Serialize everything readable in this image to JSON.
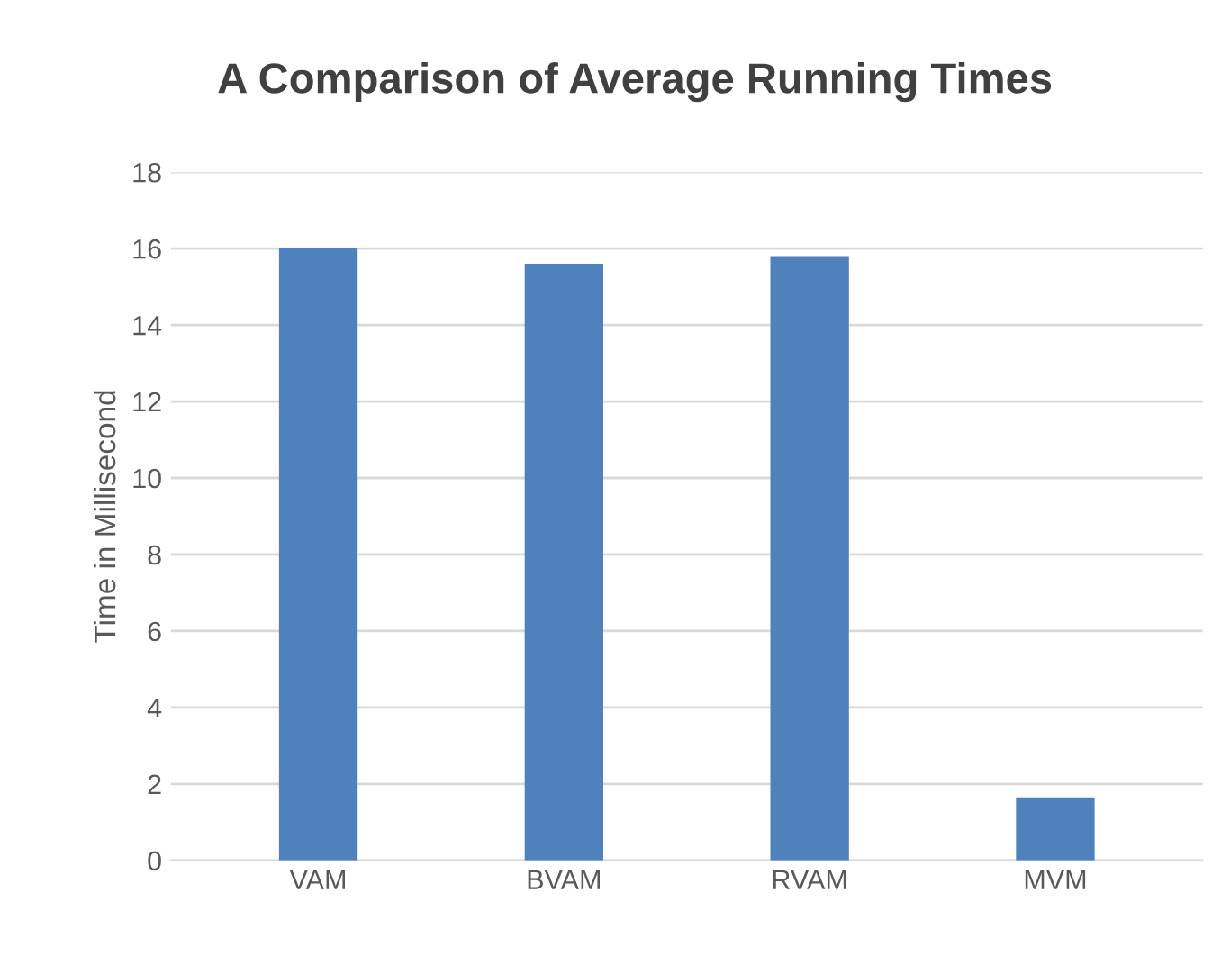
{
  "chart_data": {
    "type": "bar",
    "title": "A Comparison of Average Running Times",
    "ylabel": "Time in Millisecond",
    "categories": [
      "VAM",
      "BVAM",
      "RVAM",
      "MVM"
    ],
    "values": [
      16.0,
      15.6,
      15.8,
      1.65
    ],
    "color": "#4f81bd",
    "ylim": [
      0,
      18
    ],
    "yticks": [
      0,
      2,
      4,
      6,
      8,
      10,
      12,
      14,
      16,
      18
    ],
    "grid": "y",
    "legend": false
  }
}
